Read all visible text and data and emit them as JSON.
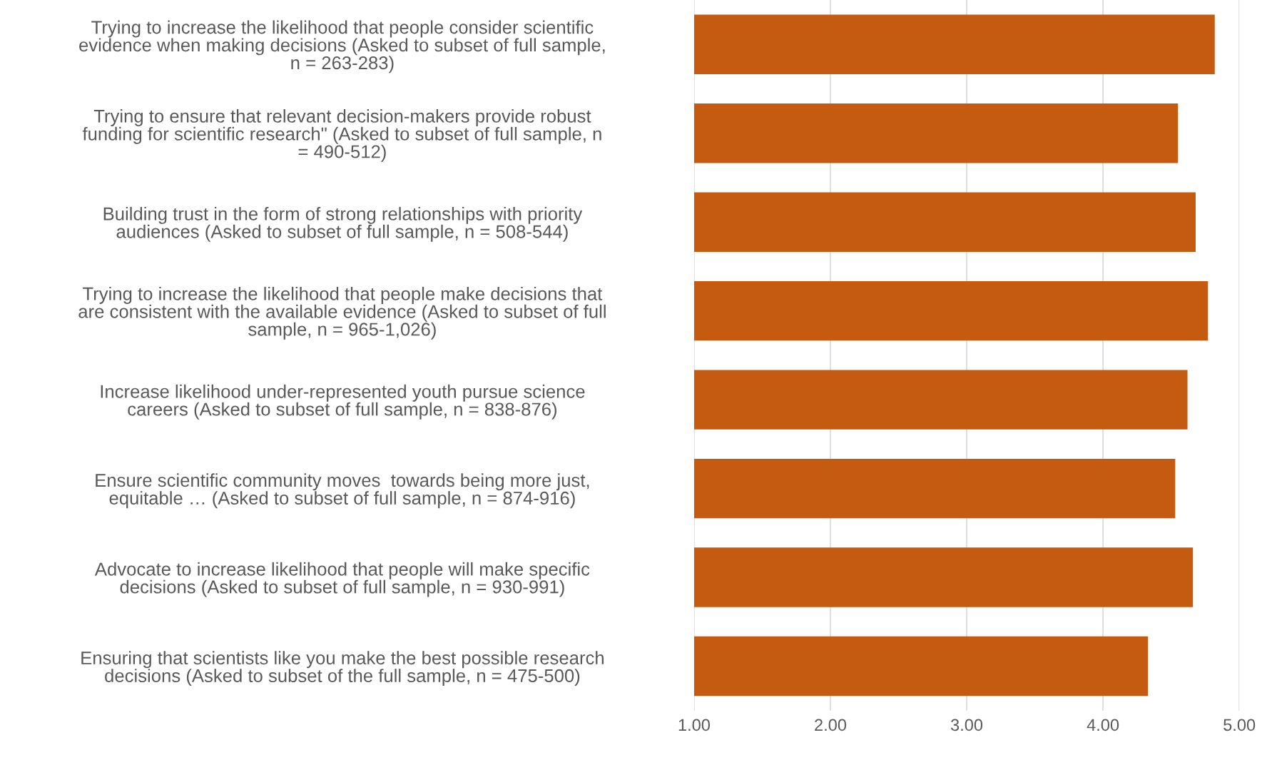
{
  "chart_data": {
    "type": "bar",
    "orientation": "horizontal",
    "categories": [
      "Trying to increase the likelihood that people consider scientific\nevidence when making decisions (Asked to subset of full sample,\nn = 263-283)",
      "Trying to ensure that relevant decision-makers provide robust\nfunding for scientific research\" (Asked to subset of full sample, n\n= 490-512)",
      "Building trust in the form of strong relationships with priority\naudiences (Asked to subset of full sample, n = 508-544)",
      "Trying to increase the likelihood that people make decisions that\nare consistent with the available evidence (Asked to subset of full\nsample, n = 965-1,026)",
      "Increase likelihood under-represented youth pursue science\ncareers (Asked to subset of full sample, n = 838-876)",
      "Ensure scientific community moves  towards being more just,\nequitable … (Asked to subset of full sample, n = 874-916)",
      "Advocate to increase likelihood that people will make specific\ndecisions (Asked to subset of full sample, n = 930-991)",
      "Ensuring that scientists like you make the best possible research\ndecisions (Asked to subset of the full sample, n = 475-500)"
    ],
    "values": [
      4.82,
      4.55,
      4.68,
      4.77,
      4.62,
      4.53,
      4.66,
      4.33
    ],
    "color": "#c55a11",
    "xlim": [
      1,
      5
    ],
    "xticks": [
      {
        "value": 1,
        "label": "1.00"
      },
      {
        "value": 2,
        "label": "2.00"
      },
      {
        "value": 3,
        "label": "3.00"
      },
      {
        "value": 4,
        "label": "4.00"
      },
      {
        "value": 5,
        "label": "5.00"
      }
    ],
    "grid": "x",
    "legend": false
  }
}
